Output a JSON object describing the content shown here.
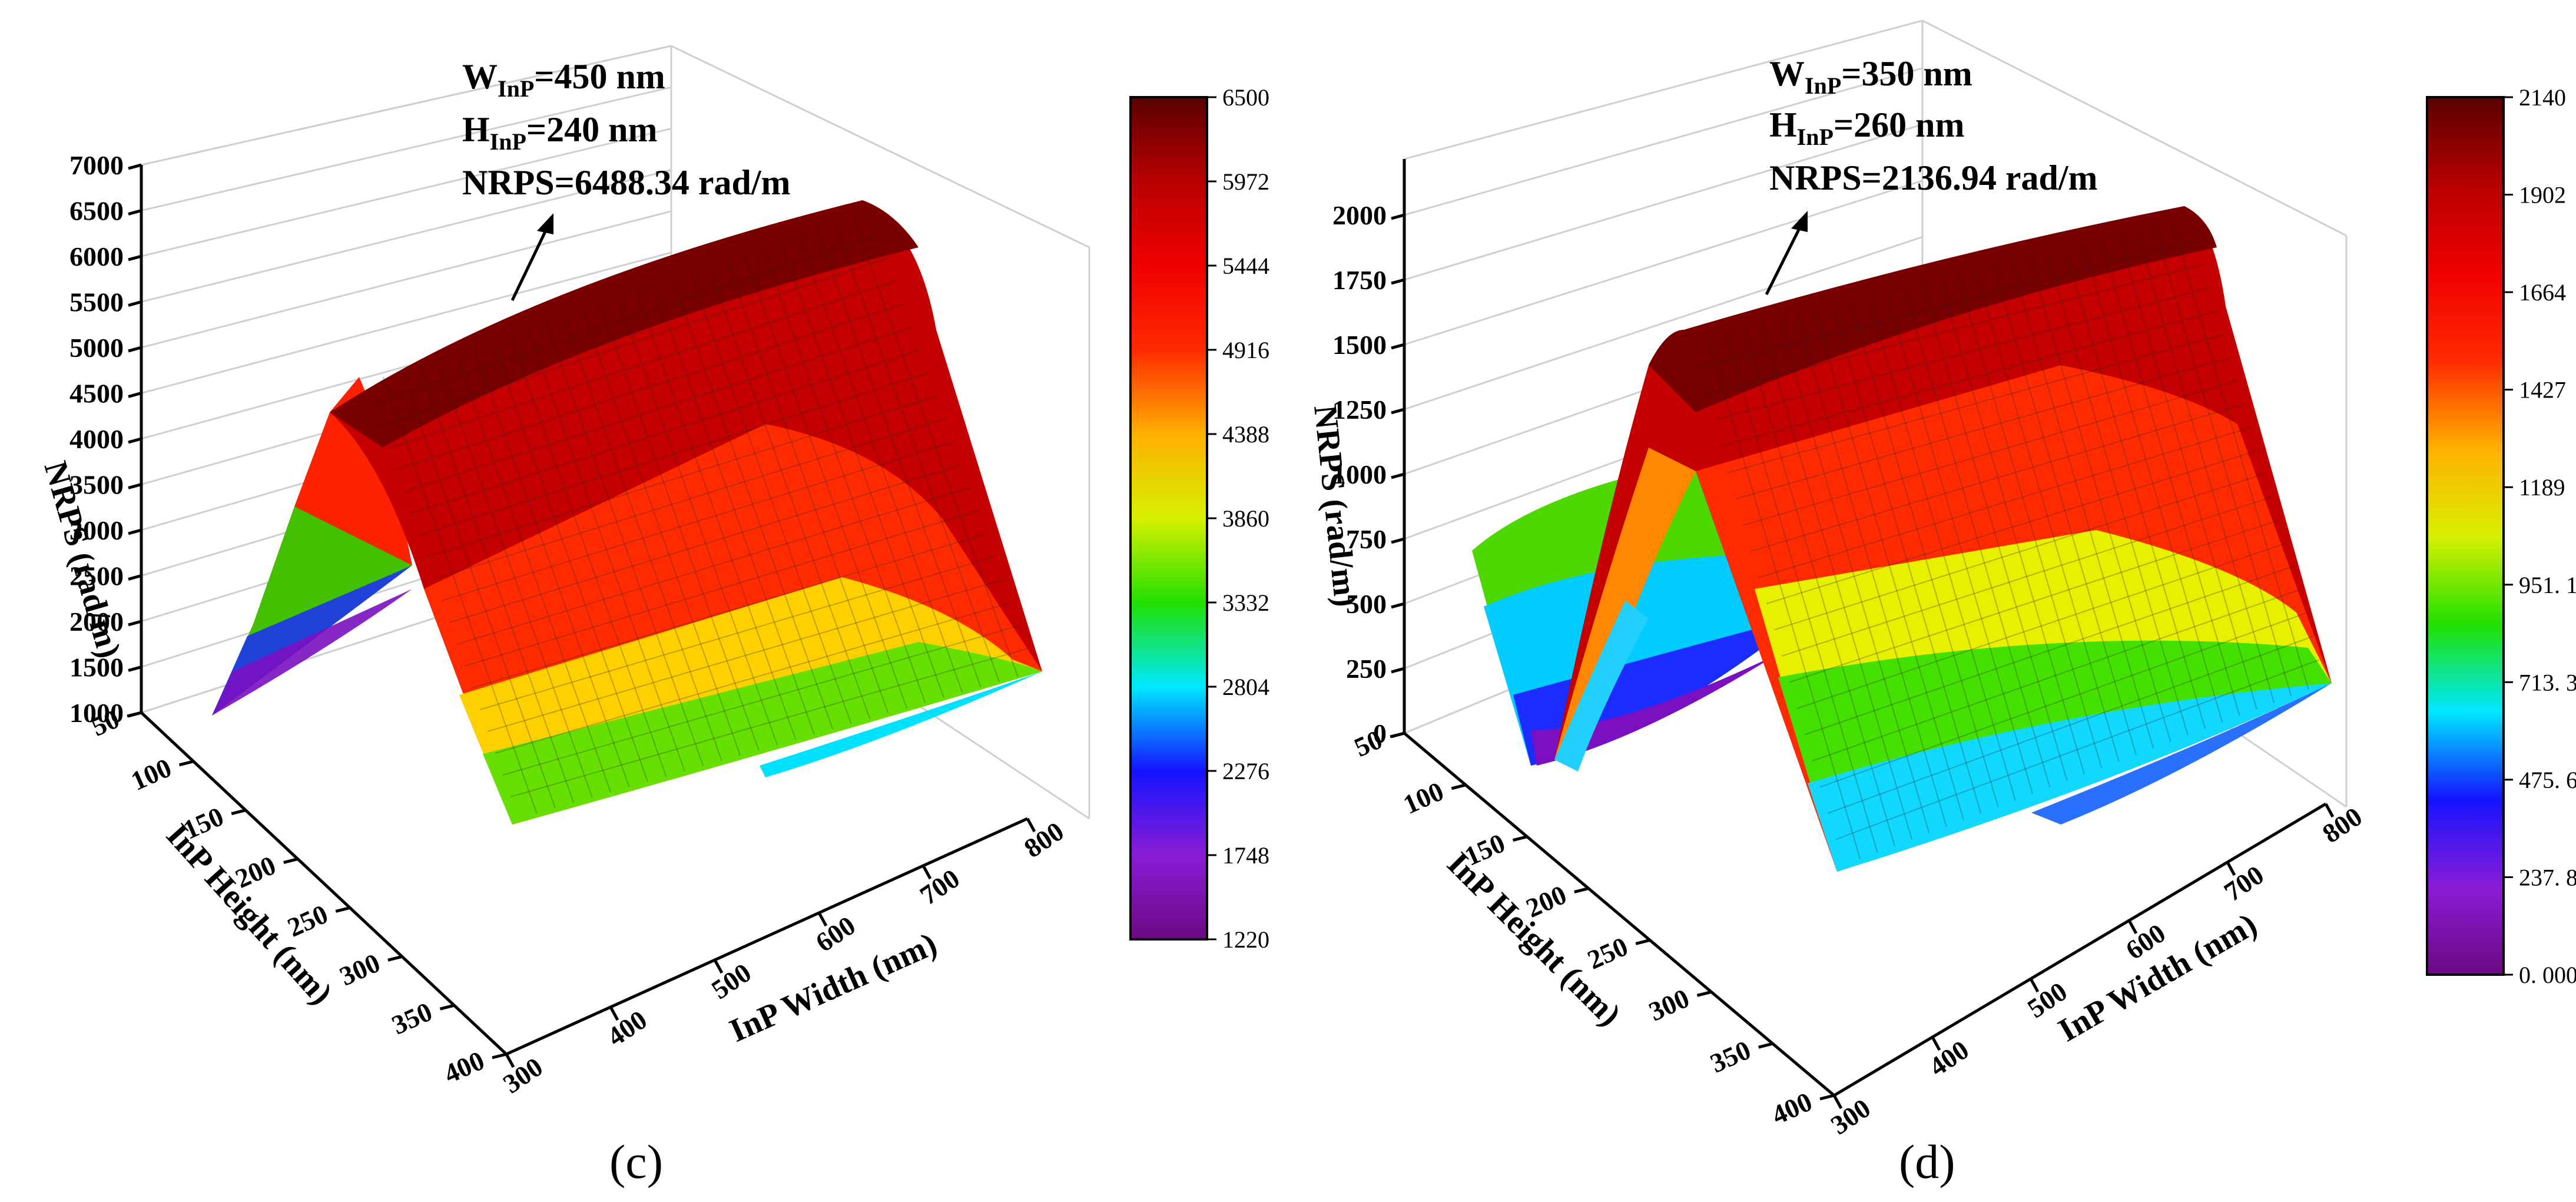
{
  "chart_data": [
    {
      "type": "surface3d",
      "panel_label": "(c)",
      "zlabel": "NRPS (rad/m)",
      "xlabel": "InP Width (nm)",
      "ylabel": "InP Height (nm)",
      "x_ticks": [
        "300",
        "400",
        "500",
        "600",
        "700",
        "800"
      ],
      "y_ticks": [
        "50",
        "100",
        "150",
        "200",
        "250",
        "300",
        "350",
        "400"
      ],
      "z_ticks": [
        "1000",
        "1500",
        "2000",
        "2500",
        "3000",
        "3500",
        "4000",
        "4500",
        "5000",
        "5500",
        "6000",
        "6500",
        "7000"
      ],
      "xlim": [
        300,
        800
      ],
      "ylim": [
        50,
        400
      ],
      "zlim": [
        1000,
        7000
      ],
      "peak": {
        "width_nm": 450,
        "height_nm": 240,
        "nrps": 6488.34
      },
      "annotation": {
        "w_main": "W",
        "w_sub": "InP",
        "w_val": "=450 nm",
        "h_main": "H",
        "h_sub": "InP",
        "h_val": "=240 nm",
        "nrps_text": "NRPS=6488.34 rad/m"
      },
      "colorbar": {
        "min": 1220,
        "max": 6500,
        "labels": [
          "6500",
          "5972",
          "5444",
          "4916",
          "4388",
          "3860",
          "3332",
          "2804",
          "2276",
          "1748",
          "1220"
        ]
      }
    },
    {
      "type": "surface3d",
      "panel_label": "(d)",
      "zlabel": "NRPS (rad/m)",
      "xlabel": "InP Width (nm)",
      "ylabel": "InP Height (nm)",
      "x_ticks": [
        "300",
        "400",
        "500",
        "600",
        "700",
        "800"
      ],
      "y_ticks": [
        "50",
        "100",
        "150",
        "200",
        "250",
        "300",
        "350",
        "400"
      ],
      "z_ticks": [
        "0",
        "250",
        "500",
        "750",
        "1000",
        "1250",
        "1500",
        "1750",
        "2000"
      ],
      "xlim": [
        300,
        800
      ],
      "ylim": [
        50,
        400
      ],
      "zlim": [
        0,
        2200
      ],
      "peak": {
        "width_nm": 350,
        "height_nm": 260,
        "nrps": 2136.94
      },
      "annotation": {
        "w_main": "W",
        "w_sub": "InP",
        "w_val": "=350 nm",
        "h_main": "H",
        "h_sub": "InP",
        "h_val": "=260 nm",
        "nrps_text": "NRPS=2136.94 rad/m"
      },
      "colorbar": {
        "min": 0,
        "max": 2140,
        "labels": [
          "2140",
          "1902",
          "1664",
          "1427",
          "1189",
          "951. 1",
          "713. 3",
          "475. 6",
          "237. 8",
          "0. 000"
        ]
      }
    }
  ]
}
